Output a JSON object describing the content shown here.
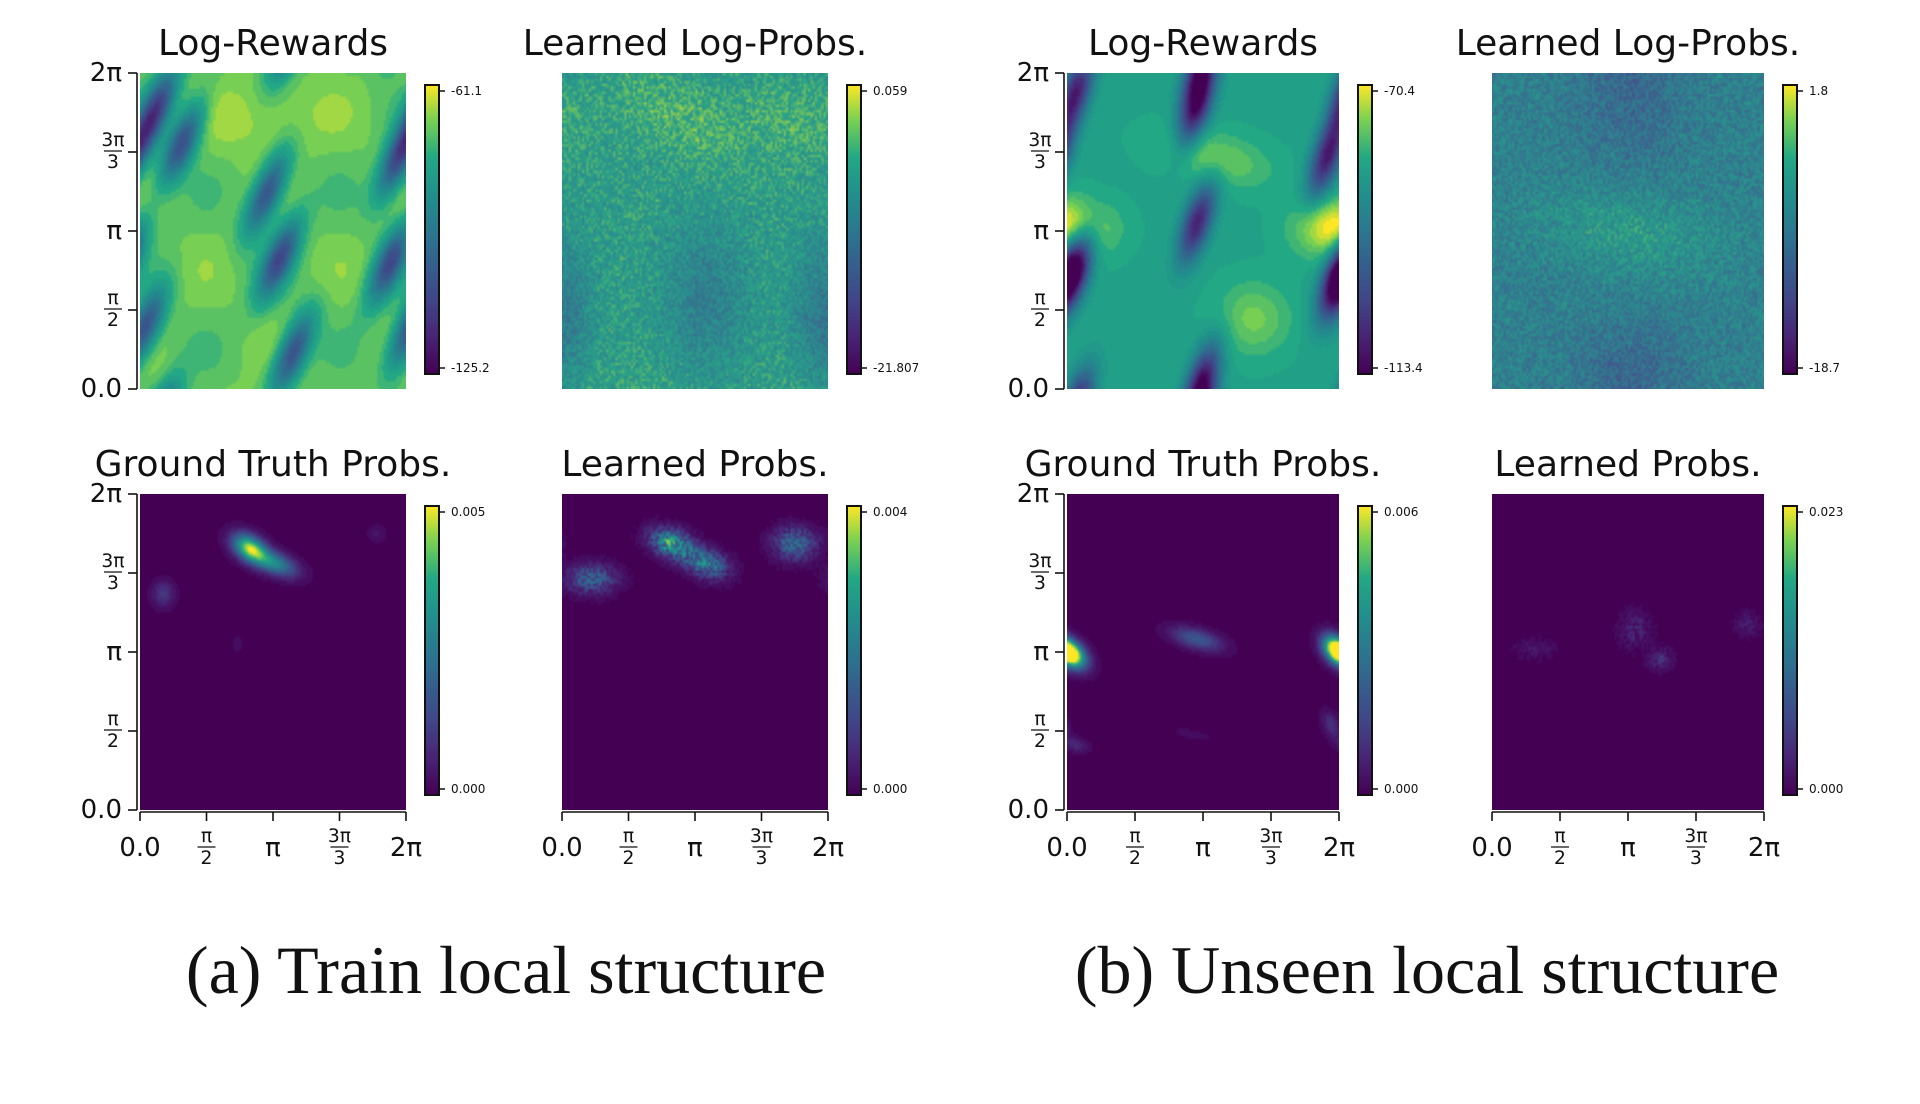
{
  "figure": {
    "captions": [
      "(a) Train local structure",
      "(b) Unseen local structure"
    ]
  },
  "chart_data": [
    {
      "type": "heatmap",
      "group": "a",
      "row": 0,
      "col": 0,
      "title": "Log-Rewards",
      "field": "reward_a",
      "colormap": "viridis",
      "colorbar_ticks": [
        "-61.1",
        "-125.2"
      ],
      "x_ticks": [],
      "y_ticks": [
        "2π",
        "3π/3",
        "π",
        "π/2",
        "0.0"
      ],
      "xlim": [
        0,
        6.283
      ],
      "ylim": [
        0,
        6.283
      ]
    },
    {
      "type": "heatmap",
      "group": "a",
      "row": 0,
      "col": 1,
      "title": "Learned Log-Probs.",
      "field": "learned_log_a",
      "colormap": "viridis",
      "colorbar_ticks": [
        "0.059",
        "-21.807"
      ],
      "x_ticks": [],
      "y_ticks": [],
      "xlim": [
        0,
        6.283
      ],
      "ylim": [
        0,
        6.283
      ]
    },
    {
      "type": "heatmap",
      "group": "a",
      "row": 1,
      "col": 0,
      "title": "Ground Truth Probs.",
      "field": "gt_prob_a",
      "colormap": "viridis",
      "colorbar_ticks": [
        "0.005",
        "0.000"
      ],
      "x_ticks": [
        "0.0",
        "π/2",
        "π",
        "3π/3",
        "2π"
      ],
      "y_ticks": [
        "2π",
        "3π/3",
        "π",
        "π/2",
        "0.0"
      ],
      "xlim": [
        0,
        6.283
      ],
      "ylim": [
        0,
        6.283
      ]
    },
    {
      "type": "heatmap",
      "group": "a",
      "row": 1,
      "col": 1,
      "title": "Learned Probs.",
      "field": "learned_prob_a",
      "colormap": "viridis",
      "colorbar_ticks": [
        "0.004",
        "0.000"
      ],
      "x_ticks": [
        "0.0",
        "π/2",
        "π",
        "3π/3",
        "2π"
      ],
      "y_ticks": [],
      "xlim": [
        0,
        6.283
      ],
      "ylim": [
        0,
        6.283
      ]
    },
    {
      "type": "heatmap",
      "group": "b",
      "row": 0,
      "col": 0,
      "title": "Log-Rewards",
      "field": "reward_b",
      "colormap": "viridis",
      "colorbar_ticks": [
        "-70.4",
        "-113.4"
      ],
      "x_ticks": [],
      "y_ticks": [
        "2π",
        "3π/3",
        "π",
        "π/2",
        "0.0"
      ],
      "xlim": [
        0,
        6.283
      ],
      "ylim": [
        0,
        6.283
      ]
    },
    {
      "type": "heatmap",
      "group": "b",
      "row": 0,
      "col": 1,
      "title": "Learned Log-Probs.",
      "field": "learned_log_b",
      "colormap": "viridis",
      "colorbar_ticks": [
        "1.8",
        "-18.7"
      ],
      "x_ticks": [],
      "y_ticks": [],
      "xlim": [
        0,
        6.283
      ],
      "ylim": [
        0,
        6.283
      ]
    },
    {
      "type": "heatmap",
      "group": "b",
      "row": 1,
      "col": 0,
      "title": "Ground Truth Probs.",
      "field": "gt_prob_b",
      "colormap": "viridis",
      "colorbar_ticks": [
        "0.006",
        "0.000"
      ],
      "x_ticks": [
        "0.0",
        "π/2",
        "π",
        "3π/3",
        "2π"
      ],
      "y_ticks": [
        "2π",
        "3π/3",
        "π",
        "π/2",
        "0.0"
      ],
      "xlim": [
        0,
        6.283
      ],
      "ylim": [
        0,
        6.283
      ]
    },
    {
      "type": "heatmap",
      "group": "b",
      "row": 1,
      "col": 1,
      "title": "Learned Probs.",
      "field": "learned_prob_b",
      "colormap": "viridis",
      "colorbar_ticks": [
        "0.023",
        "0.000"
      ],
      "x_ticks": [
        "0.0",
        "π/2",
        "π",
        "3π/3",
        "2π"
      ],
      "y_ticks": [],
      "xlim": [
        0,
        6.283
      ],
      "ylim": [
        0,
        6.283
      ]
    }
  ]
}
